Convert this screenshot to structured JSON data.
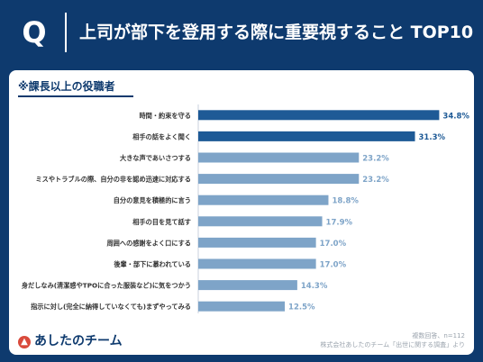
{
  "header": {
    "q_label": "Q",
    "title": "上司が部下を登用する際に重要視すること TOP10"
  },
  "subtitle": "※課長以上の役職者",
  "footer": {
    "logo_text": "あしたのチーム",
    "note_count": "複数回答、n=112",
    "note_source": "株式会社あしたのチーム「出世に関する調査」より"
  },
  "colors": {
    "navy": "#0e3a6e",
    "bar_dark": "#1e5a96",
    "bar_light": "#7ea4c8",
    "label_dark": "#1e5a96",
    "label_light": "#7ea4c8"
  },
  "chart_data": {
    "type": "bar",
    "orientation": "horizontal",
    "categories": [
      "時間・約束を守る",
      "相手の話をよく聞く",
      "大きな声であいさつする",
      "ミスやトラブルの際、自分の非を認め迅速に対応する",
      "自分の意見を積極的に言う",
      "相手の目を見て話す",
      "周囲への感謝をよく口にする",
      "後輩・部下に慕われている",
      "身だしなみ(清潔感やTPOに合った服装など)に気をつかう",
      "指示に対し(完全に納得していなくても)まずやってみる"
    ],
    "values": [
      34.8,
      31.3,
      23.2,
      23.2,
      18.8,
      17.9,
      17.0,
      17.0,
      14.3,
      12.5
    ],
    "value_labels": [
      "34.8%",
      "31.3%",
      "23.2%",
      "23.2%",
      "18.8%",
      "17.9%",
      "17.0%",
      "17.0%",
      "14.3%",
      "12.5%"
    ],
    "highlight_count": 2,
    "xlim": [
      0,
      38
    ],
    "grid": false,
    "legend": "none"
  }
}
